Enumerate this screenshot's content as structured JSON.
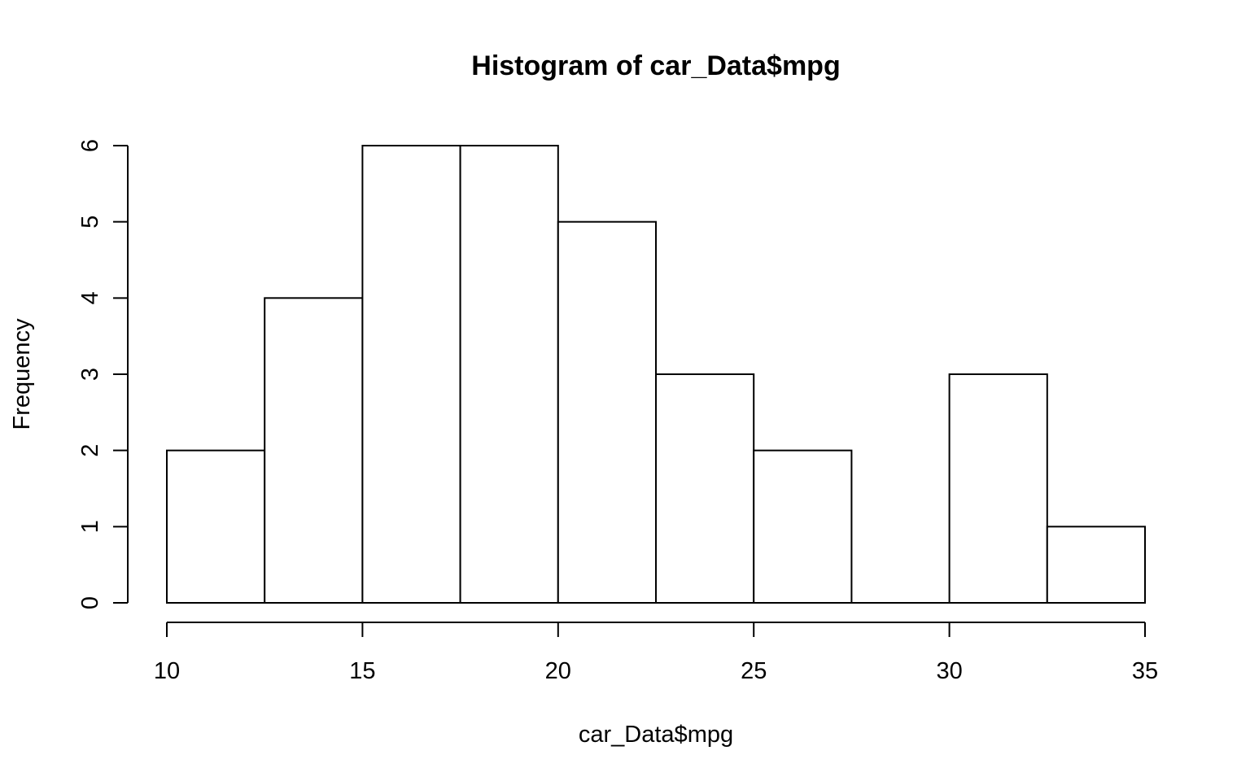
{
  "chart_data": {
    "type": "bar",
    "title": "Histogram of car_Data$mpg",
    "xlabel": "car_Data$mpg",
    "ylabel": "Frequency",
    "bins": [
      {
        "start": 10,
        "end": 12.5,
        "count": 2
      },
      {
        "start": 12.5,
        "end": 15,
        "count": 4
      },
      {
        "start": 15,
        "end": 17.5,
        "count": 6
      },
      {
        "start": 17.5,
        "end": 20,
        "count": 6
      },
      {
        "start": 20,
        "end": 22.5,
        "count": 5
      },
      {
        "start": 22.5,
        "end": 25,
        "count": 3
      },
      {
        "start": 25,
        "end": 27.5,
        "count": 2
      },
      {
        "start": 27.5,
        "end": 30,
        "count": 0
      },
      {
        "start": 30,
        "end": 32.5,
        "count": 3
      },
      {
        "start": 32.5,
        "end": 35,
        "count": 1
      }
    ],
    "x_ticks": [
      "10",
      "15",
      "20",
      "25",
      "30",
      "35"
    ],
    "y_ticks": [
      "0",
      "1",
      "2",
      "3",
      "4",
      "5",
      "6"
    ],
    "xlim": [
      10,
      35
    ],
    "ylim": [
      0,
      6
    ],
    "grid": false,
    "legend": "none",
    "bar_fill": "#ffffff",
    "bar_stroke": "#000000"
  }
}
